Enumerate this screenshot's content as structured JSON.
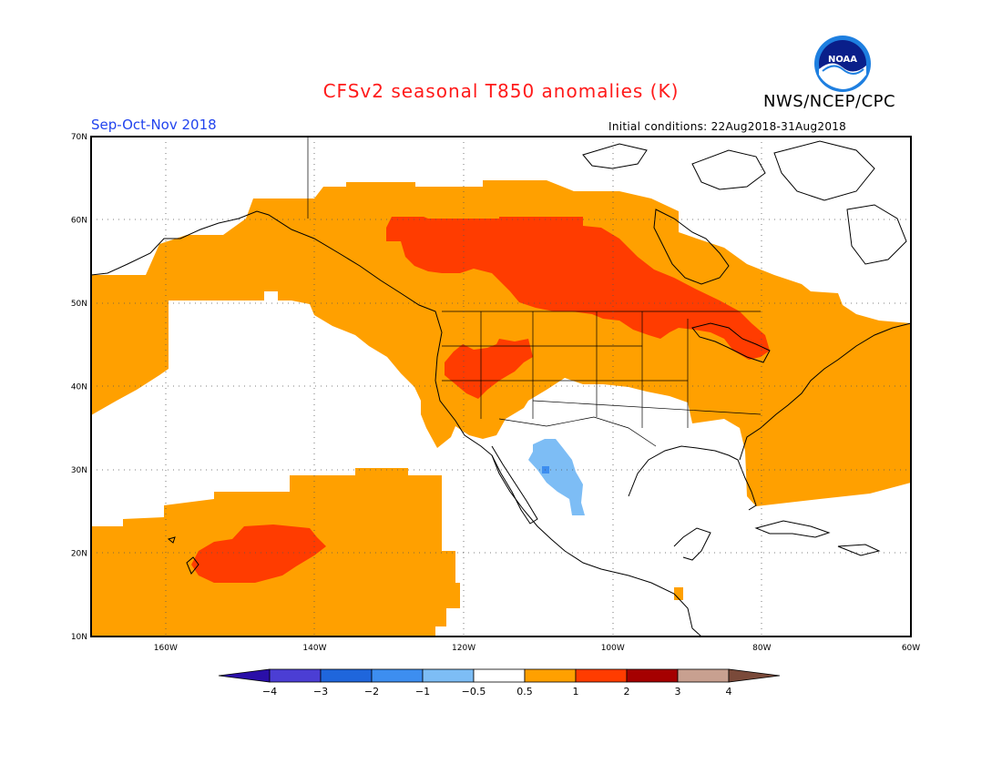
{
  "header": {
    "title": "CFSv2 seasonal T850 anomalies (K)",
    "agency": "NWS/NCEP/CPC",
    "season": "Sep-Oct-Nov 2018",
    "initial_conditions": "Initial conditions: 22Aug2018-31Aug2018",
    "logo_text": "NOAA"
  },
  "map": {
    "lon_range": [
      -170,
      -60
    ],
    "lat_range": [
      10,
      70
    ],
    "lat_labels": [
      "10N",
      "20N",
      "30N",
      "40N",
      "50N",
      "60N",
      "70N"
    ],
    "lon_labels": [
      "160W",
      "140W",
      "120W",
      "100W",
      "80W",
      "60W"
    ]
  },
  "colorbar": {
    "labels": [
      "-4",
      "-3",
      "-2",
      "-1",
      "-0.5",
      "0.5",
      "1",
      "2",
      "3",
      "4"
    ],
    "colors": [
      "#2a0fa8",
      "#4b3ed4",
      "#1f66dc",
      "#3d8ef0",
      "#7dbdf5",
      "#ffffff",
      "#ffa000",
      "#ff3c00",
      "#a50000",
      "#c8a090",
      "#7a4a3a"
    ]
  },
  "colors": {
    "anomaly_0_5_to_1": "#ffa000",
    "anomaly_1_to_2": "#ff3c00",
    "anomaly_neg_0_5_to_neg_1": "#7dbdf5"
  }
}
